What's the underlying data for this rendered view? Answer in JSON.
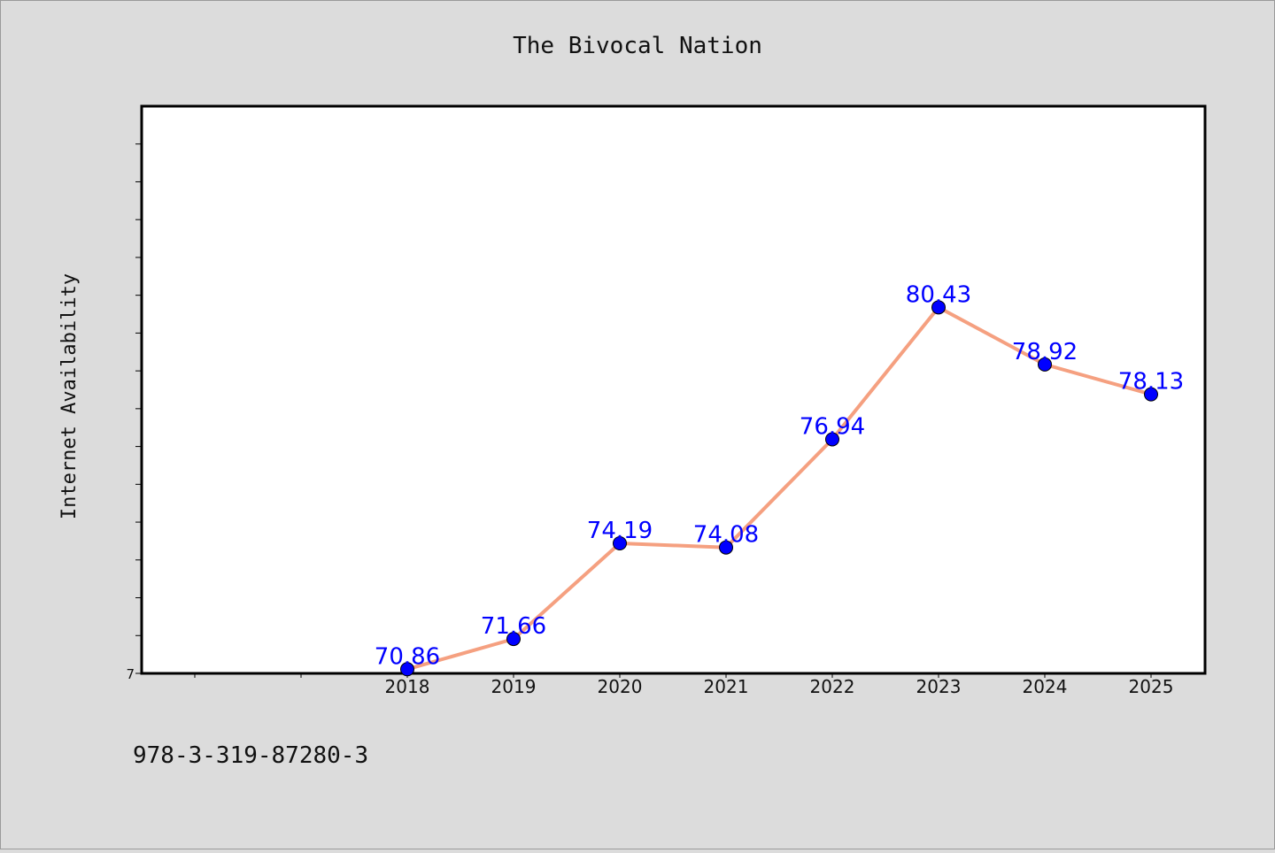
{
  "chart_data": {
    "type": "line",
    "title": "The Bivocal Nation",
    "xlabel": "",
    "ylabel": "Internet Availability",
    "categories": [
      "2018",
      "2019",
      "2020",
      "2021",
      "2022",
      "2023",
      "2024",
      "2025"
    ],
    "series": [
      {
        "values": [
          70.86,
          71.66,
          74.19,
          74.08,
          76.94,
          80.43,
          78.92,
          78.13
        ],
        "line_color": "#f5a080",
        "marker_color": "#0000ff",
        "label_color": "#0000ff"
      }
    ],
    "value_labels": [
      "70.86",
      "71.66",
      "74.19",
      "74.08",
      "76.94",
      "80.43",
      "78.92",
      "78.13"
    ],
    "y_tick_labels": [
      "7"
    ],
    "ylim": [
      70.75,
      85.75
    ],
    "grid": false,
    "legend": "none"
  },
  "footer": {
    "isbn": "978-3-319-87280-3"
  }
}
